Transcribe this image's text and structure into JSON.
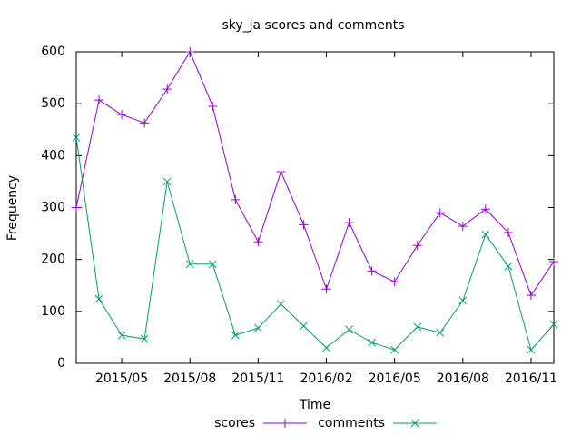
{
  "chart_data": {
    "type": "line",
    "title": "sky_ja scores and comments",
    "xlabel": "Time",
    "ylabel": "Frequency",
    "x": [
      "2015/03",
      "2015/04",
      "2015/05",
      "2015/06",
      "2015/07",
      "2015/08",
      "2015/09",
      "2015/10",
      "2015/11",
      "2015/12",
      "2016/01",
      "2016/02",
      "2016/03",
      "2016/04",
      "2016/05",
      "2016/06",
      "2016/07",
      "2016/08",
      "2016/09",
      "2016/10",
      "2016/11",
      "2016/12"
    ],
    "series": [
      {
        "name": "scores",
        "color": "#9400d3",
        "marker": "+",
        "values": [
          300,
          507,
          479,
          463,
          528,
          600,
          495,
          315,
          234,
          369,
          267,
          143,
          271,
          178,
          157,
          227,
          290,
          264,
          297,
          252,
          131,
          196
        ]
      },
      {
        "name": "comments",
        "color": "#009e73",
        "marker": "x",
        "values": [
          435,
          124,
          54,
          47,
          350,
          191,
          191,
          54,
          68,
          114,
          72,
          30,
          65,
          40,
          26,
          70,
          59,
          121,
          248,
          187,
          26,
          75
        ]
      }
    ],
    "xlim": [
      "2015/03",
      "2016/12"
    ],
    "xticks": [
      "2015/05",
      "2015/08",
      "2015/11",
      "2016/02",
      "2016/05",
      "2016/08",
      "2016/11"
    ],
    "ylim": [
      0,
      600
    ],
    "yticks": [
      0,
      100,
      200,
      300,
      400,
      500,
      600
    ],
    "legend": "bottom"
  }
}
